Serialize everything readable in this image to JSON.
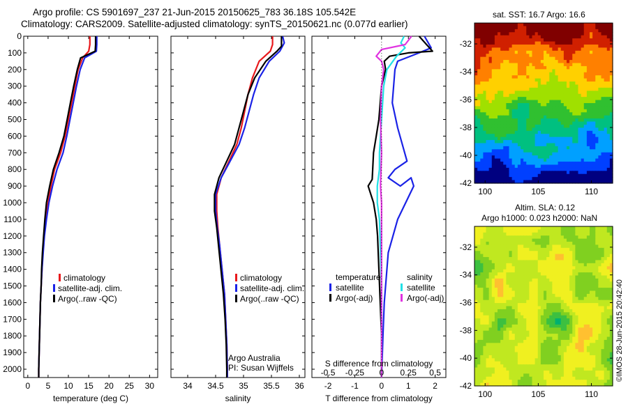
{
  "header": {
    "title_line1": "Argo profile: CS 5901697_237 21-Jun-2015 20150625_783 36.18S 105.542E",
    "title_line2": "Climatology: CARS2009. Satellite-adjusted climatology: synTS_20150621.nc (0.077d earlier)"
  },
  "colors": {
    "climatology": "#e8191c",
    "satellite": "#1a22e6",
    "argo": "#000000",
    "sal_satellite": "#22e0e6",
    "sal_argo": "#e033e0"
  },
  "legend": {
    "climatology": "climatology",
    "satellite": "satellite-adj. clim.",
    "argo": "Argo(..raw -QC)",
    "diff_temp_header": "temperature",
    "diff_sal_header": "salinity",
    "diff_satellite": "satellite",
    "diff_argo": "Argo(-adj)"
  },
  "credits": {
    "line1": "Argo Australia",
    "line2": "PI: Susan Wijffels",
    "timestamp": "©IMOS 28-Jun-2015 20:42:40"
  },
  "maps": {
    "sst_title": "sat. SST: 16.7  Argo: 16.6",
    "sla_title_1": "Altim. SLA: 0.12",
    "sla_title_2": "Argo h1000: 0.023  h2000: NaN",
    "lat_ticks": [
      "-32",
      "-34",
      "-36",
      "-38",
      "-40",
      "-42"
    ],
    "lon_ticks": [
      "100",
      "105",
      "110"
    ]
  },
  "chart_data": [
    {
      "type": "line",
      "panel": "temperature",
      "xlabel": "temperature (deg C)",
      "ylabel": "",
      "xlim": [
        -1,
        32
      ],
      "ylim": [
        2050,
        0
      ],
      "x_ticks": [
        0,
        5,
        10,
        15,
        20,
        25,
        30
      ],
      "y_ticks": [
        0,
        100,
        200,
        300,
        400,
        500,
        600,
        700,
        800,
        900,
        1000,
        1100,
        1200,
        1300,
        1400,
        1500,
        1600,
        1700,
        1800,
        1900,
        2000
      ],
      "series": [
        {
          "name": "climatology",
          "color": "#e8191c",
          "points": [
            [
              15.3,
              0
            ],
            [
              15.3,
              50
            ],
            [
              15.0,
              90
            ],
            [
              13.5,
              130
            ],
            [
              12.4,
              200
            ],
            [
              11.6,
              300
            ],
            [
              10.8,
              400
            ],
            [
              10.0,
              500
            ],
            [
              9.2,
              600
            ],
            [
              8.1,
              700
            ],
            [
              6.6,
              800
            ],
            [
              5.7,
              900
            ],
            [
              5.0,
              1000
            ],
            [
              4.4,
              1100
            ],
            [
              4.0,
              1200
            ],
            [
              3.7,
              1300
            ],
            [
              3.5,
              1400
            ],
            [
              3.3,
              1500
            ],
            [
              3.1,
              1600
            ],
            [
              3.0,
              1700
            ],
            [
              2.9,
              1800
            ],
            [
              2.8,
              1900
            ],
            [
              2.7,
              2000
            ],
            [
              2.7,
              2050
            ]
          ]
        },
        {
          "name": "satellite-adj. clim.",
          "color": "#1a22e6",
          "points": [
            [
              17.0,
              0
            ],
            [
              17.0,
              50
            ],
            [
              16.9,
              90
            ],
            [
              14.0,
              130
            ],
            [
              12.9,
              200
            ],
            [
              12.0,
              300
            ],
            [
              11.2,
              400
            ],
            [
              10.4,
              500
            ],
            [
              9.6,
              600
            ],
            [
              8.7,
              700
            ],
            [
              7.2,
              800
            ],
            [
              6.1,
              900
            ],
            [
              5.2,
              1000
            ],
            [
              4.6,
              1100
            ],
            [
              4.1,
              1200
            ],
            [
              3.8,
              1300
            ],
            [
              3.5,
              1400
            ],
            [
              3.3,
              1500
            ],
            [
              3.1,
              1600
            ],
            [
              3.0,
              1700
            ],
            [
              2.9,
              1800
            ],
            [
              2.8,
              1900
            ],
            [
              2.7,
              2000
            ],
            [
              2.7,
              2050
            ]
          ]
        },
        {
          "name": "Argo(..raw -QC)",
          "color": "#000000",
          "points": [
            [
              16.7,
              0
            ],
            [
              16.7,
              50
            ],
            [
              16.6,
              90
            ],
            [
              13.0,
              130
            ],
            [
              12.2,
              200
            ],
            [
              11.3,
              300
            ],
            [
              10.5,
              400
            ],
            [
              9.7,
              500
            ],
            [
              8.9,
              600
            ],
            [
              7.7,
              700
            ],
            [
              6.3,
              800
            ],
            [
              5.4,
              900
            ],
            [
              4.6,
              1000
            ],
            [
              4.2,
              1100
            ],
            [
              3.9,
              1200
            ],
            [
              3.6,
              1300
            ],
            [
              3.4,
              1400
            ],
            [
              3.3,
              1500
            ],
            [
              3.1,
              1600
            ],
            [
              3.0,
              1700
            ],
            [
              2.9,
              1800
            ],
            [
              2.8,
              1900
            ],
            [
              2.7,
              2000
            ],
            [
              2.7,
              2050
            ]
          ]
        }
      ]
    },
    {
      "type": "line",
      "panel": "salinity",
      "xlabel": "salinity",
      "ylabel": "",
      "xlim": [
        33.7,
        36.1
      ],
      "ylim": [
        2050,
        0
      ],
      "x_ticks": [
        34,
        34.5,
        35,
        35.5,
        36
      ],
      "series": [
        {
          "name": "climatology",
          "color": "#e8191c",
          "points": [
            [
              35.52,
              0
            ],
            [
              35.52,
              50
            ],
            [
              35.48,
              90
            ],
            [
              35.28,
              150
            ],
            [
              35.16,
              250
            ],
            [
              35.08,
              350
            ],
            [
              35.02,
              450
            ],
            [
              34.96,
              550
            ],
            [
              34.88,
              650
            ],
            [
              34.74,
              750
            ],
            [
              34.6,
              850
            ],
            [
              34.52,
              950
            ],
            [
              34.52,
              1050
            ],
            [
              34.54,
              1150
            ],
            [
              34.57,
              1250
            ],
            [
              34.6,
              1350
            ],
            [
              34.63,
              1450
            ],
            [
              34.66,
              1550
            ],
            [
              34.68,
              1700
            ],
            [
              34.7,
              1850
            ],
            [
              34.71,
              2000
            ],
            [
              34.71,
              2050
            ]
          ]
        },
        {
          "name": "satellite-adj. clim.",
          "color": "#1a22e6",
          "points": [
            [
              35.7,
              0
            ],
            [
              35.73,
              40
            ],
            [
              35.65,
              90
            ],
            [
              35.46,
              150
            ],
            [
              35.28,
              250
            ],
            [
              35.18,
              350
            ],
            [
              35.1,
              450
            ],
            [
              35.02,
              550
            ],
            [
              34.92,
              650
            ],
            [
              34.76,
              750
            ],
            [
              34.6,
              850
            ],
            [
              34.5,
              950
            ],
            [
              34.5,
              1050
            ],
            [
              34.53,
              1150
            ],
            [
              34.57,
              1250
            ],
            [
              34.6,
              1350
            ],
            [
              34.63,
              1450
            ],
            [
              34.66,
              1550
            ],
            [
              34.68,
              1700
            ],
            [
              34.7,
              1850
            ],
            [
              34.71,
              2000
            ],
            [
              34.71,
              2050
            ]
          ]
        },
        {
          "name": "Argo(..raw -QC)",
          "color": "#000000",
          "points": [
            [
              35.68,
              0
            ],
            [
              35.68,
              60
            ],
            [
              35.6,
              90
            ],
            [
              35.4,
              150
            ],
            [
              35.2,
              250
            ],
            [
              35.08,
              350
            ],
            [
              35.0,
              450
            ],
            [
              34.92,
              550
            ],
            [
              34.84,
              650
            ],
            [
              34.7,
              750
            ],
            [
              34.56,
              850
            ],
            [
              34.48,
              950
            ],
            [
              34.48,
              1050
            ],
            [
              34.52,
              1150
            ],
            [
              34.55,
              1250
            ],
            [
              34.58,
              1350
            ],
            [
              34.61,
              1450
            ],
            [
              34.64,
              1550
            ],
            [
              34.67,
              1700
            ],
            [
              34.69,
              1850
            ],
            [
              34.7,
              2000
            ],
            [
              34.7,
              2050
            ]
          ]
        }
      ]
    },
    {
      "type": "line",
      "panel": "difference",
      "xlabel": "T difference from climatology",
      "top_xlabel": "S difference from climatology",
      "xlim": [
        -2.6,
        2.4
      ],
      "ylim": [
        2050,
        0
      ],
      "x_ticks": [
        -2,
        -1,
        0,
        1,
        2
      ],
      "top_x_ticks": [
        -0.5,
        -0.25,
        0,
        0.25,
        0.5
      ],
      "top_xlim": [
        -0.65,
        0.6
      ],
      "series": [
        {
          "name": "temperature satellite",
          "color": "#1a22e6",
          "axis": "T",
          "points": [
            [
              1.6,
              0
            ],
            [
              1.85,
              70
            ],
            [
              1.4,
              100
            ],
            [
              0.6,
              150
            ],
            [
              0.5,
              200
            ],
            [
              0.4,
              400
            ],
            [
              0.6,
              550
            ],
            [
              0.95,
              750
            ],
            [
              0.5,
              800
            ],
            [
              0.25,
              850
            ],
            [
              0.7,
              900
            ],
            [
              1.1,
              850
            ],
            [
              1.2,
              900
            ],
            [
              0.9,
              1000
            ],
            [
              0.6,
              1100
            ],
            [
              0.25,
              1300
            ],
            [
              0.1,
              1600
            ],
            [
              0.05,
              1800
            ],
            [
              0.0,
              2050
            ]
          ]
        },
        {
          "name": "temperature Argo(-adj)",
          "color": "#000000",
          "axis": "T",
          "points": [
            [
              1.4,
              0
            ],
            [
              1.9,
              90
            ],
            [
              1.0,
              100
            ],
            [
              0.3,
              120
            ],
            [
              0.1,
              150
            ],
            [
              0.15,
              200
            ],
            [
              0.0,
              300
            ],
            [
              -0.1,
              500
            ],
            [
              -0.2,
              600
            ],
            [
              -0.3,
              700
            ],
            [
              -0.35,
              860
            ],
            [
              -0.5,
              900
            ],
            [
              -0.3,
              1000
            ],
            [
              -0.2,
              1100
            ],
            [
              -0.15,
              1200
            ],
            [
              -0.1,
              1400
            ],
            [
              -0.05,
              1600
            ],
            [
              0.0,
              1800
            ],
            [
              0.0,
              2050
            ]
          ]
        },
        {
          "name": "salinity satellite",
          "color": "#22e0e6",
          "axis": "S",
          "points": [
            [
              0.21,
              0
            ],
            [
              0.18,
              40
            ],
            [
              0.22,
              70
            ],
            [
              0.14,
              120
            ],
            [
              0.05,
              200
            ],
            [
              0.02,
              300
            ],
            [
              0.0,
              500
            ],
            [
              -0.02,
              700
            ],
            [
              -0.02,
              800
            ],
            [
              -0.04,
              900
            ],
            [
              -0.04,
              1000
            ],
            [
              -0.02,
              1100
            ],
            [
              -0.01,
              1300
            ],
            [
              0.0,
              1500
            ],
            [
              0.0,
              2050
            ]
          ]
        },
        {
          "name": "salinity Argo(-adj)",
          "color": "#e033e0",
          "axis": "S",
          "points": [
            [
              0.28,
              0
            ],
            [
              0.22,
              50
            ],
            [
              0.0,
              80
            ],
            [
              -0.05,
              120
            ],
            [
              0.0,
              150
            ],
            [
              0.02,
              200
            ],
            [
              0.0,
              300
            ],
            [
              -0.01,
              500
            ],
            [
              0.0,
              700
            ],
            [
              -0.01,
              900
            ],
            [
              0.0,
              1000
            ],
            [
              0.0,
              1200
            ],
            [
              0.0,
              2050
            ]
          ]
        }
      ]
    },
    {
      "type": "heatmap",
      "panel": "sst_map",
      "title": "sat. SST: 16.7  Argo: 16.6",
      "xlim": [
        99,
        112
      ],
      "ylim": [
        -42,
        -30.5
      ],
      "x_ticks": [
        100,
        105,
        110
      ],
      "y_ticks": [
        -32,
        -34,
        -36,
        -38,
        -40,
        -42
      ],
      "colors": [
        "#000080",
        "#0040ff",
        "#00a0ff",
        "#00c080",
        "#30c030",
        "#a0e000",
        "#ffd000",
        "#ff8000",
        "#d02000",
        "#800000"
      ]
    },
    {
      "type": "heatmap",
      "panel": "sla_map",
      "title": "Altim. SLA: 0.12 / Argo h1000: 0.023  h2000: NaN",
      "xlim": [
        99,
        112
      ],
      "ylim": [
        -42,
        -30.5
      ],
      "x_ticks": [
        100,
        105,
        110
      ],
      "y_ticks": [
        -32,
        -34,
        -36,
        -38,
        -40,
        -42
      ],
      "colors": [
        "#00b070",
        "#3cc040",
        "#80d020",
        "#c0e820",
        "#f0f020",
        "#ffc030"
      ]
    }
  ]
}
